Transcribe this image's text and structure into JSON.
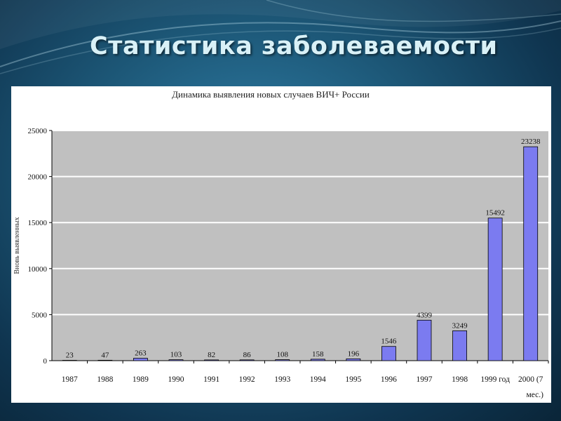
{
  "slide": {
    "title": "Статистика заболеваемости",
    "background_color": "#1d5878",
    "title_color": "#d9f1f7"
  },
  "chart_data": {
    "type": "bar",
    "title": "Динамика выявления новых случаев ВИЧ+ России",
    "ylabel": "Вновь выявленных",
    "xlabel": "",
    "ylim": [
      0,
      25000
    ],
    "yticks": [
      0,
      5000,
      10000,
      15000,
      20000,
      25000
    ],
    "grid": true,
    "legend": "none",
    "bar_color": "#7b7bf0",
    "plot_background": "#c0c0c0",
    "categories": [
      "1987",
      "1988",
      "1989",
      "1990",
      "1991",
      "1992",
      "1993",
      "1994",
      "1995",
      "1996",
      "1997",
      "1998",
      "1999 год",
      "2000 (7 мес.)"
    ],
    "values": [
      23,
      47,
      263,
      103,
      82,
      86,
      108,
      158,
      196,
      1546,
      4399,
      3249,
      15492,
      23238
    ]
  }
}
